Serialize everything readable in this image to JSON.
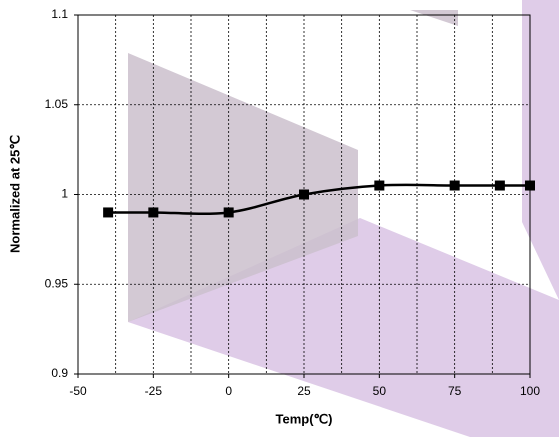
{
  "chart_data": {
    "type": "line",
    "x": [
      -40,
      -25,
      0,
      25,
      50,
      75,
      90,
      100
    ],
    "values": [
      0.99,
      0.99,
      0.99,
      1.0,
      1.005,
      1.005,
      1.005,
      1.005
    ],
    "color": "#000000",
    "x_label": "Temp(℃)",
    "y_label": "Normalized at 25℃",
    "xlim": [
      -50,
      100
    ],
    "xticks": [
      -50,
      -25,
      0,
      25,
      50,
      75,
      100
    ],
    "xgrid": [
      -37.5,
      -25,
      -12.5,
      0,
      12.5,
      25,
      37.5,
      50,
      62.5,
      75,
      87.5
    ],
    "ylim": [
      0.9,
      1.1
    ],
    "yticks": [
      0.9,
      0.95,
      1,
      1.05,
      1.1
    ],
    "ygrid": [
      0.95,
      1,
      1.05
    ],
    "marker": "square",
    "smooth": true
  }
}
